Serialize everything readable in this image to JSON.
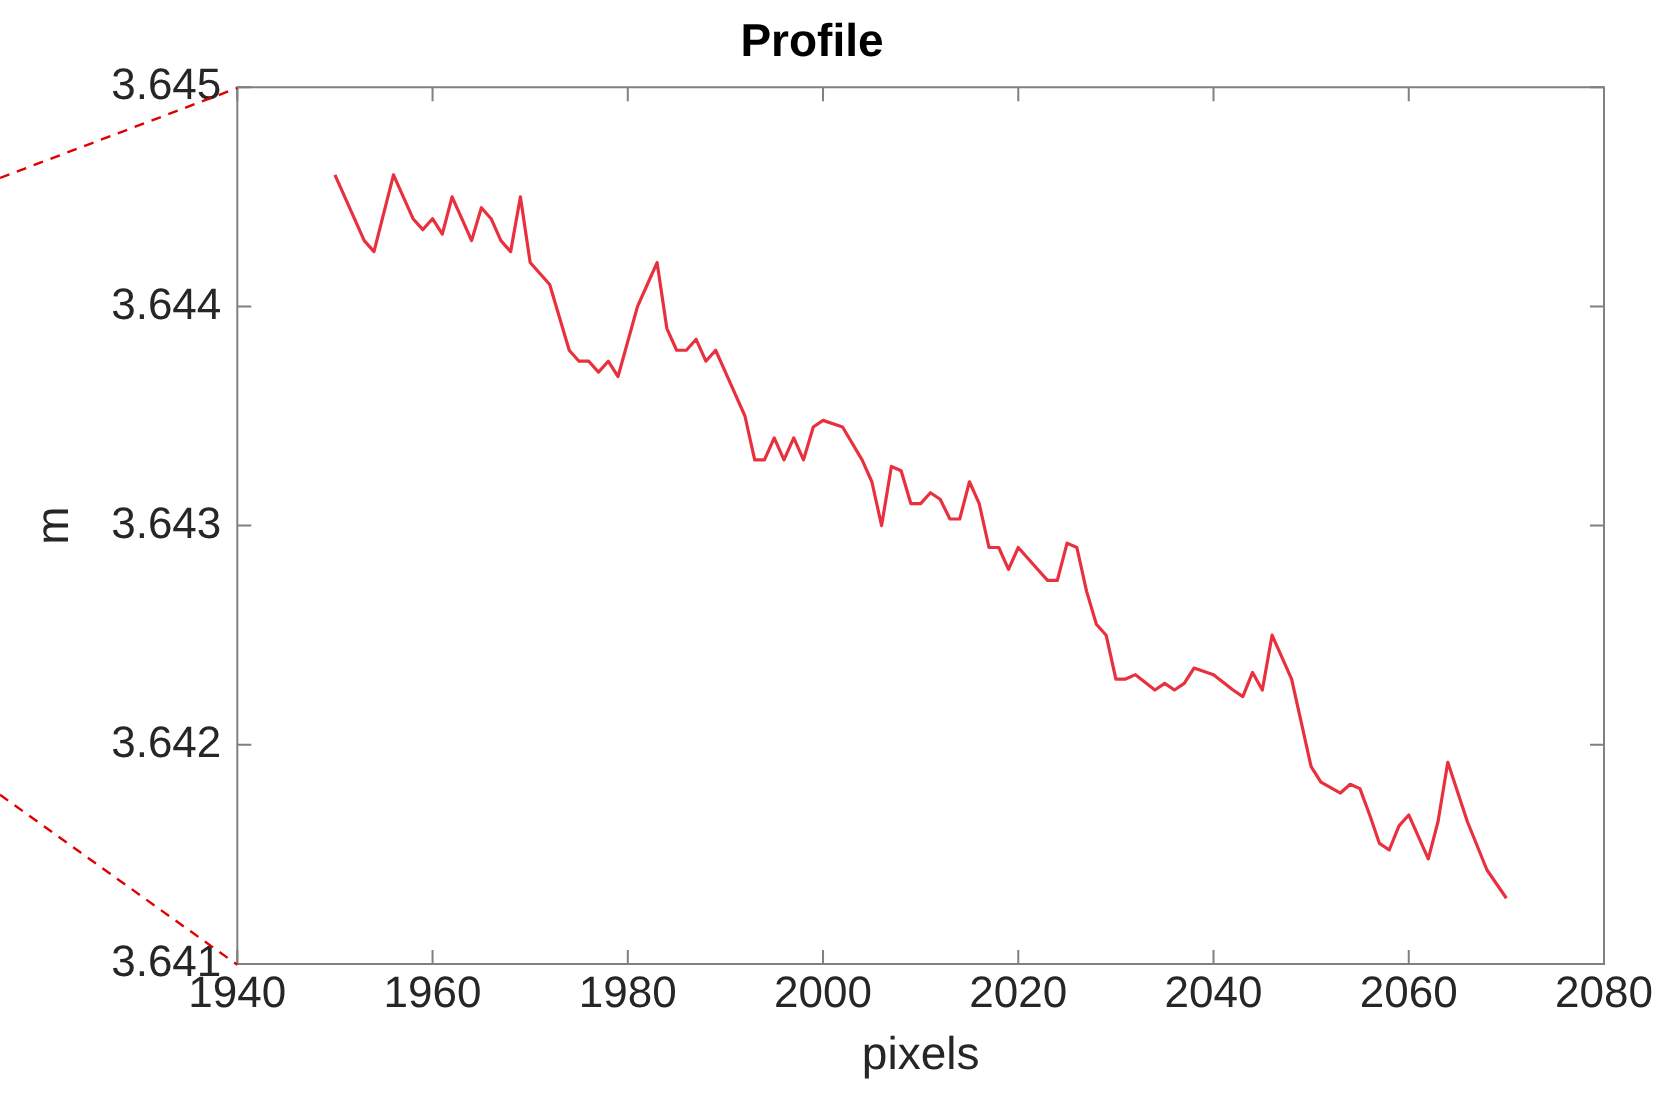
{
  "chart_data": {
    "type": "line",
    "title": "Profile",
    "xlabel": "pixels",
    "ylabel": "m",
    "x": [
      1950,
      1952,
      1953,
      1954,
      1956,
      1958,
      1959,
      1960,
      1961,
      1962,
      1963,
      1964,
      1965,
      1966,
      1967,
      1968,
      1969,
      1970,
      1972,
      1974,
      1975,
      1976,
      1977,
      1978,
      1979,
      1981,
      1982,
      1983,
      1984,
      1985,
      1986,
      1987,
      1988,
      1989,
      1990,
      1992,
      1993,
      1994,
      1995,
      1996,
      1997,
      1998,
      1999,
      2000,
      2002,
      2004,
      2005,
      2006,
      2007,
      2008,
      2009,
      2010,
      2011,
      2012,
      2013,
      2014,
      2015,
      2016,
      2017,
      2018,
      2019,
      2020,
      2021,
      2022,
      2023,
      2024,
      2025,
      2026,
      2027,
      2028,
      2029,
      2030,
      2031,
      2032,
      2034,
      2035,
      2036,
      2037,
      2038,
      2040,
      2042,
      2043,
      2044,
      2045,
      2046,
      2047,
      2048,
      2050,
      2051,
      2053,
      2054,
      2055,
      2056,
      2057,
      2058,
      2059,
      2060,
      2062,
      2063,
      2064,
      2066,
      2068,
      2070
    ],
    "series": [
      {
        "color": "#e8303f",
        "values": [
          3.6446,
          3.6444,
          3.6443,
          3.64425,
          3.6446,
          3.6444,
          3.64435,
          3.6444,
          3.64433,
          3.6445,
          3.6444,
          3.6443,
          3.64445,
          3.6444,
          3.6443,
          3.64425,
          3.6445,
          3.6442,
          3.6441,
          3.6438,
          3.64375,
          3.64375,
          3.6437,
          3.64375,
          3.64368,
          3.644,
          3.6441,
          3.6442,
          3.6439,
          3.6438,
          3.6438,
          3.64385,
          3.64375,
          3.6438,
          3.6437,
          3.6435,
          3.6433,
          3.6433,
          3.6434,
          3.6433,
          3.6434,
          3.6433,
          3.64345,
          3.64348,
          3.64345,
          3.6433,
          3.6432,
          3.643,
          3.64327,
          3.64325,
          3.6431,
          3.6431,
          3.64315,
          3.64312,
          3.64303,
          3.64303,
          3.6432,
          3.6431,
          3.6429,
          3.6429,
          3.6428,
          3.6429,
          3.64285,
          3.6428,
          3.64275,
          3.64275,
          3.64292,
          3.6429,
          3.6427,
          3.64255,
          3.6425,
          3.6423,
          3.6423,
          3.64232,
          3.64225,
          3.64228,
          3.64225,
          3.64228,
          3.64235,
          3.64232,
          3.64225,
          3.64222,
          3.64233,
          3.64225,
          3.6425,
          3.6424,
          3.6423,
          3.6419,
          3.64183,
          3.64178,
          3.64182,
          3.6418,
          3.64168,
          3.64155,
          3.64152,
          3.64163,
          3.64168,
          3.64148,
          3.64165,
          3.64192,
          3.64165,
          3.64143,
          3.6413
        ]
      }
    ],
    "xlim": [
      1940,
      2080
    ],
    "xticks": [
      1940,
      1960,
      1980,
      2000,
      2020,
      2040,
      2060,
      2080
    ],
    "ylim": [
      3.641,
      3.645
    ],
    "yticks": [
      3.641,
      3.642,
      3.643,
      3.644,
      3.645
    ],
    "grid": false,
    "legend": false,
    "marker": "none",
    "line_style": "solid"
  }
}
